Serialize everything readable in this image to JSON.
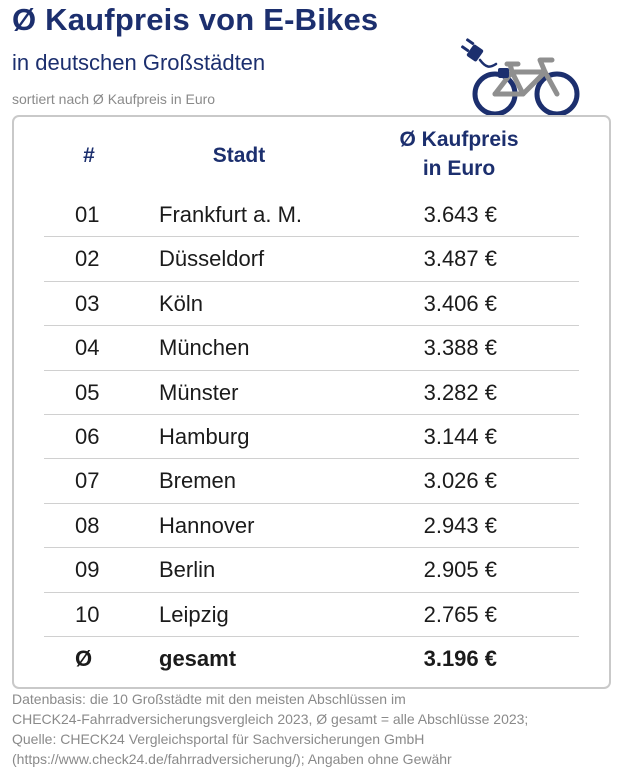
{
  "header": {
    "title": "Ø Kaufpreis von E-Bikes",
    "subtitle": "in deutschen Großstädten",
    "note": "sortiert nach Ø Kaufpreis in Euro",
    "icon": "ebike-icon"
  },
  "table": {
    "col_num": "#",
    "col_city": "Stadt",
    "col_price_line1": "Ø Kaufpreis",
    "col_price_line2": "in Euro",
    "rows": [
      {
        "num": "01",
        "city": "Frankfurt a. M.",
        "price": "3.643 €"
      },
      {
        "num": "02",
        "city": "Düsseldorf",
        "price": "3.487 €"
      },
      {
        "num": "03",
        "city": "Köln",
        "price": "3.406 €"
      },
      {
        "num": "04",
        "city": "München",
        "price": "3.388 €"
      },
      {
        "num": "05",
        "city": "Münster",
        "price": "3.282 €"
      },
      {
        "num": "06",
        "city": "Hamburg",
        "price": "3.144 €"
      },
      {
        "num": "07",
        "city": "Bremen",
        "price": "3.026 €"
      },
      {
        "num": "08",
        "city": "Hannover",
        "price": "2.943 €"
      },
      {
        "num": "09",
        "city": "Berlin",
        "price": "2.905 €"
      },
      {
        "num": "10",
        "city": "Leipzig",
        "price": "2.765 €"
      }
    ],
    "total": {
      "num": "Ø",
      "city": "gesamt",
      "price": "3.196 €"
    }
  },
  "footer": {
    "line1": "Datenbasis: die 10 Großstädte mit den meisten Abschlüssen im",
    "line2": "CHECK24-Fahrradversicherungsvergleich 2023, Ø gesamt = alle Abschlüsse 2023;",
    "line3": "Quelle: CHECK24 Vergleichsportal für Sachversicherungen GmbH",
    "line4": "(https://www.check24.de/fahrradversicherung/); Angaben ohne Gewähr"
  },
  "colors": {
    "primary": "#1c2f6e",
    "bike_frame": "#8f8f8f",
    "muted_text": "#8a8a8a",
    "divider": "#d0d0d0"
  }
}
